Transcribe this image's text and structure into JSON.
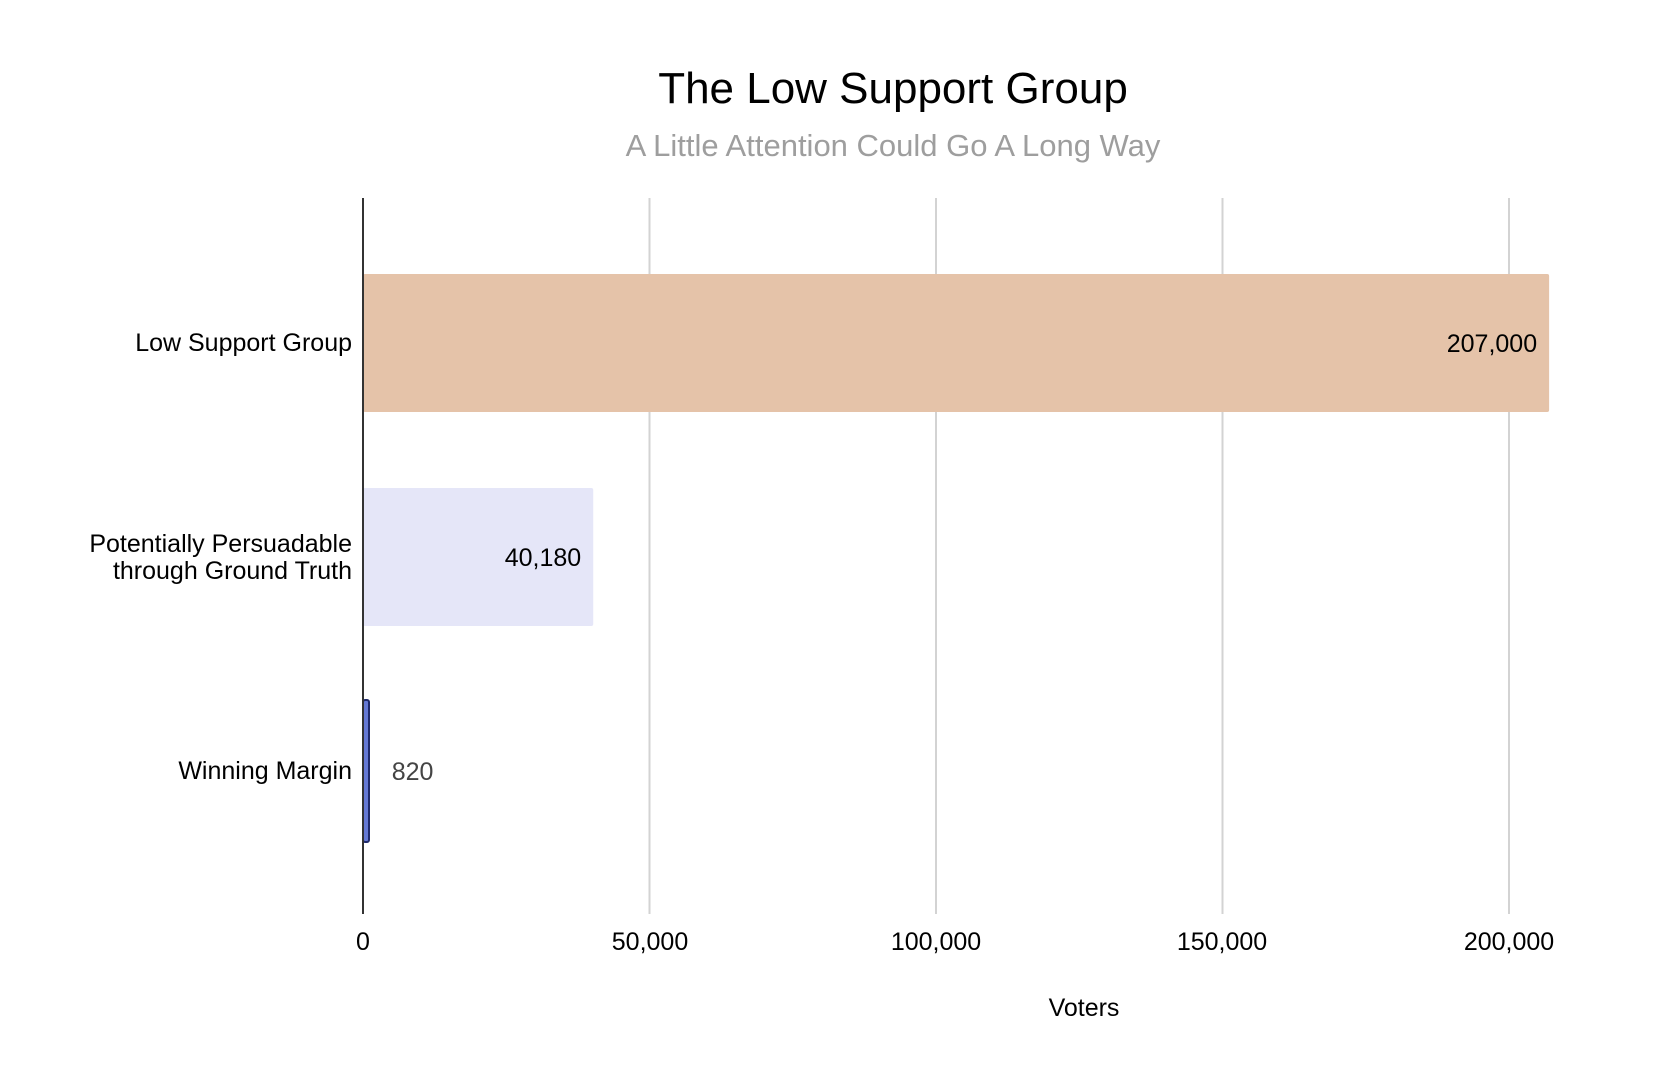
{
  "chart_data": {
    "type": "bar",
    "orientation": "horizontal",
    "title": "The Low Support Group",
    "subtitle": "A Little Attention Could Go A Long Way",
    "xlabel": "Voters",
    "ylabel": "",
    "xlim": [
      0,
      210000
    ],
    "x_ticks": [
      0,
      50000,
      100000,
      150000,
      200000
    ],
    "x_tick_labels": [
      "0",
      "50,000",
      "100,000",
      "150,000",
      "200,000"
    ],
    "grid": true,
    "categories": [
      "Low Support Group",
      "Potentially Persuadable\nthrough Ground Truth",
      "Winning Margin"
    ],
    "values": [
      207000,
      40180,
      820
    ],
    "value_labels": [
      "207,000",
      "40,180",
      "820"
    ],
    "colors": [
      "#e5c3a9",
      "#e5e6f8",
      "#6579d4"
    ]
  },
  "colors": {
    "gridline": "#d3d3d3",
    "axis": "#333333",
    "title": "#000000",
    "subtitle": "#9e9e9e"
  }
}
